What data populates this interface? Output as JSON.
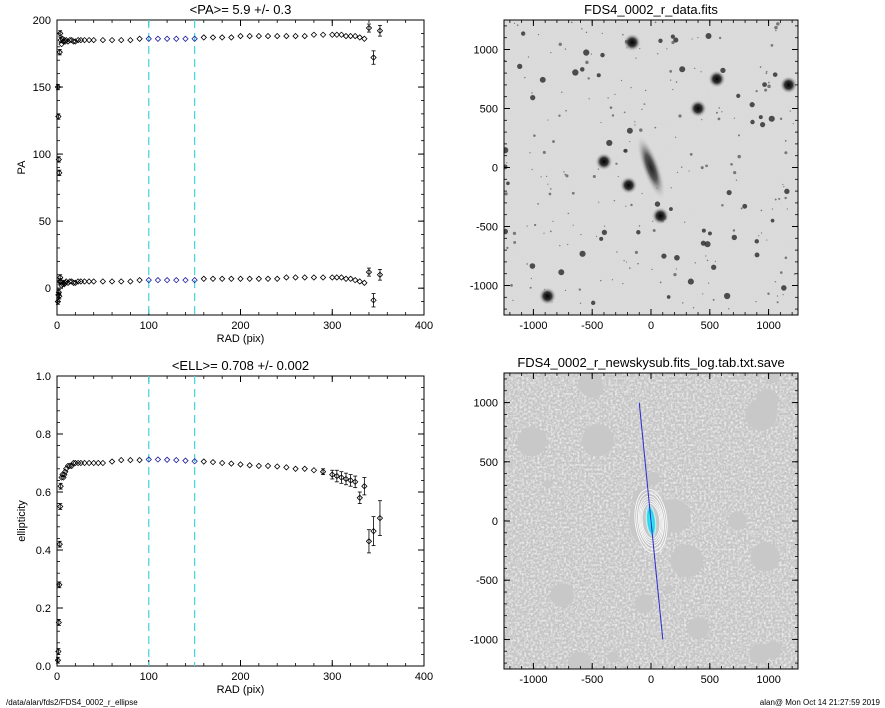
{
  "chart_data": [
    {
      "type": "scatter",
      "title": "<PA>=   5.9 +/-   0.3",
      "xlabel": "RAD (pix)",
      "ylabel": "PA",
      "xlim": [
        0,
        400
      ],
      "ylim": [
        -20,
        200
      ],
      "xticks": [
        0,
        100,
        200,
        300,
        400
      ],
      "yticks": [
        0,
        50,
        100,
        150,
        200
      ],
      "vlines": [
        100,
        150
      ],
      "highlight_range": [
        100,
        150
      ],
      "series": [
        {
          "x": [
            1,
            1.5,
            2,
            2.5,
            3,
            3.5,
            4,
            5,
            6,
            7,
            8,
            9,
            10,
            12,
            14,
            16,
            18,
            20,
            23,
            26,
            30,
            35,
            40,
            50,
            60,
            70,
            80,
            90,
            100,
            110,
            120,
            130,
            140,
            150,
            160,
            170,
            180,
            190,
            200,
            210,
            220,
            230,
            240,
            250,
            260,
            270,
            280,
            290,
            300,
            305,
            310,
            315,
            320,
            325,
            330,
            335,
            340,
            345,
            352
          ],
          "y": [
            150,
            128,
            96,
            86,
            176,
            190,
            185,
            182,
            186,
            184,
            185,
            184,
            185,
            184,
            185,
            185,
            184,
            184,
            185,
            185,
            185,
            185,
            185,
            185,
            185,
            185,
            185,
            186,
            186,
            186,
            186,
            186,
            186,
            186,
            187,
            187,
            187,
            187,
            188,
            188,
            188,
            188,
            188,
            188,
            188,
            188,
            189,
            189,
            189,
            189,
            189,
            188,
            188,
            188,
            187,
            186,
            194,
            172,
            192
          ],
          "yerr": [
            2,
            2,
            2,
            2,
            2,
            2,
            2,
            1,
            1,
            1,
            1,
            1,
            1,
            0.5,
            0.5,
            0.5,
            0.5,
            0.5,
            0.5,
            0.5,
            0.5,
            0.5,
            0.5,
            0.5,
            0.5,
            0.5,
            0.5,
            0.5,
            0.5,
            0.5,
            0.5,
            0.5,
            0.5,
            0.5,
            0.5,
            0.5,
            0.5,
            0.5,
            0.5,
            0.5,
            0.5,
            0.5,
            0.5,
            0.5,
            0.5,
            0.5,
            0.5,
            0.5,
            0.5,
            0.5,
            0.5,
            1,
            1,
            1,
            1,
            1,
            3,
            5,
            4
          ]
        },
        {
          "x": [
            1,
            1.5,
            2,
            2.5,
            3,
            3.5,
            4,
            5,
            6,
            7,
            8,
            9,
            10,
            12,
            14,
            16,
            18,
            20,
            23,
            26,
            30,
            35,
            40,
            50,
            60,
            70,
            80,
            90,
            100,
            110,
            120,
            130,
            140,
            150,
            160,
            170,
            180,
            190,
            200,
            210,
            220,
            230,
            240,
            250,
            260,
            270,
            280,
            290,
            300,
            305,
            310,
            315,
            320,
            325,
            330,
            335,
            340,
            345,
            352
          ],
          "y": [
            -10,
            -5,
            -3,
            -6,
            5,
            8,
            5,
            2,
            3,
            4,
            3,
            4,
            5,
            4,
            5,
            5,
            4,
            4,
            5,
            5,
            5,
            5,
            5,
            5,
            5,
            5,
            5,
            6,
            6,
            6,
            6,
            6,
            6,
            6,
            7,
            7,
            7,
            7,
            7,
            7,
            7,
            7,
            7,
            8,
            8,
            8,
            8,
            8,
            8,
            8,
            8,
            7,
            7,
            6,
            5,
            4,
            12,
            -9,
            10
          ],
          "yerr": [
            2,
            2,
            2,
            2,
            2,
            2,
            2,
            1,
            1,
            1,
            1,
            1,
            1,
            0.5,
            0.5,
            0.5,
            0.5,
            0.5,
            0.5,
            0.5,
            0.5,
            0.5,
            0.5,
            0.5,
            0.5,
            0.5,
            0.5,
            0.5,
            0.5,
            0.5,
            0.5,
            0.5,
            0.5,
            0.5,
            0.5,
            0.5,
            0.5,
            0.5,
            0.5,
            0.5,
            0.5,
            0.5,
            0.5,
            0.5,
            0.5,
            0.5,
            0.5,
            0.5,
            0.5,
            0.5,
            0.5,
            1,
            1,
            1,
            1,
            1,
            3,
            5,
            4
          ]
        }
      ],
      "colors": {
        "points": "#000000",
        "highlight": "#1a1aa0",
        "vline": "#4cd6dc"
      }
    },
    {
      "type": "scatter",
      "title": "<ELL>= 0.708 +/-  0.002",
      "xlabel": "RAD (pix)",
      "ylabel": "ellipticity",
      "xlim": [
        0,
        400
      ],
      "ylim": [
        0.0,
        1.0
      ],
      "xticks": [
        0,
        100,
        200,
        300,
        400
      ],
      "yticks": [
        0.0,
        0.2,
        0.4,
        0.6,
        0.8,
        1.0
      ],
      "vlines": [
        100,
        150
      ],
      "highlight_range": [
        100,
        150
      ],
      "series": [
        {
          "x": [
            1,
            1.5,
            2,
            2.5,
            3,
            3.5,
            4,
            5,
            6,
            7,
            8,
            9,
            10,
            12,
            14,
            16,
            18,
            20,
            23,
            26,
            30,
            35,
            40,
            45,
            50,
            60,
            70,
            80,
            90,
            100,
            110,
            120,
            130,
            140,
            150,
            160,
            170,
            180,
            190,
            200,
            210,
            220,
            230,
            240,
            250,
            260,
            270,
            280,
            290,
            300,
            305,
            310,
            315,
            320,
            325,
            330,
            335,
            340,
            345,
            352
          ],
          "y": [
            0.02,
            0.05,
            0.15,
            0.28,
            0.42,
            0.55,
            0.62,
            0.65,
            0.66,
            0.65,
            0.66,
            0.67,
            0.68,
            0.69,
            0.69,
            0.69,
            0.7,
            0.7,
            0.7,
            0.7,
            0.7,
            0.7,
            0.7,
            0.7,
            0.7,
            0.705,
            0.71,
            0.71,
            0.71,
            0.712,
            0.712,
            0.711,
            0.71,
            0.708,
            0.706,
            0.705,
            0.703,
            0.7,
            0.698,
            0.695,
            0.692,
            0.69,
            0.69,
            0.688,
            0.685,
            0.68,
            0.68,
            0.675,
            0.67,
            0.66,
            0.655,
            0.65,
            0.645,
            0.64,
            0.635,
            0.58,
            0.62,
            0.43,
            0.465,
            0.51
          ],
          "yerr": [
            0.01,
            0.01,
            0.01,
            0.01,
            0.01,
            0.01,
            0.01,
            0.005,
            0.005,
            0.005,
            0.005,
            0.005,
            0.005,
            0.003,
            0.003,
            0.003,
            0.003,
            0.003,
            0.003,
            0.003,
            0.003,
            0.003,
            0.003,
            0.003,
            0.003,
            0.003,
            0.003,
            0.003,
            0.003,
            0.003,
            0.003,
            0.003,
            0.003,
            0.003,
            0.003,
            0.003,
            0.003,
            0.003,
            0.003,
            0.003,
            0.003,
            0.003,
            0.003,
            0.003,
            0.003,
            0.003,
            0.005,
            0.005,
            0.01,
            0.015,
            0.02,
            0.02,
            0.02,
            0.02,
            0.02,
            0.02,
            0.03,
            0.04,
            0.05,
            0.06
          ]
        }
      ],
      "colors": {
        "points": "#000000",
        "highlight": "#1a1aa0",
        "vline": "#4cd6dc"
      }
    },
    {
      "type": "heatmap",
      "title": "FDS4_0002_r_data.fits",
      "xlim": [
        -1250,
        1250
      ],
      "ylim": [
        -1250,
        1250
      ],
      "xticks": [
        -1000,
        -500,
        0,
        500,
        1000
      ],
      "yticks": [
        -1000,
        -500,
        0,
        500,
        1000
      ],
      "colormap": "inverted-grayscale",
      "galaxy": {
        "x": 0,
        "y": 0,
        "angle_deg": 6,
        "ellipticity": 0.708
      },
      "bright_stars": [
        {
          "x": -400,
          "y": 50
        },
        {
          "x": -190,
          "y": -150
        },
        {
          "x": 400,
          "y": 500
        },
        {
          "x": 560,
          "y": 750
        },
        {
          "x": 80,
          "y": -410
        },
        {
          "x": -880,
          "y": -1090
        },
        {
          "x": 1170,
          "y": 700
        },
        {
          "x": -160,
          "y": 1060
        }
      ]
    },
    {
      "type": "heatmap",
      "title": "FDS4_0002_r_newskysub.fits_log.tab.txt.save",
      "xlim": [
        -1250,
        1250
      ],
      "ylim": [
        -1250,
        1250
      ],
      "xticks": [
        -1000,
        -500,
        0,
        500,
        1000
      ],
      "yticks": [
        -1000,
        -500,
        0,
        500,
        1000
      ],
      "colormap": "grayscale",
      "major_axis_line": {
        "x1": -100,
        "y1": 1000,
        "x2": 100,
        "y2": -1000
      },
      "isophote_semi_major": [
        30,
        50,
        70,
        90,
        110,
        130,
        150,
        170,
        190,
        210,
        240,
        270
      ],
      "colors": {
        "line": "#2b2bd0",
        "inner": "#22d8e8",
        "contours": "#ffffff"
      }
    }
  ],
  "footer": {
    "left": "/data/alan/fds2/FDS4_0002_r_ellipse",
    "right": "alan@  Mon Oct 14 21:27:59 2019"
  }
}
